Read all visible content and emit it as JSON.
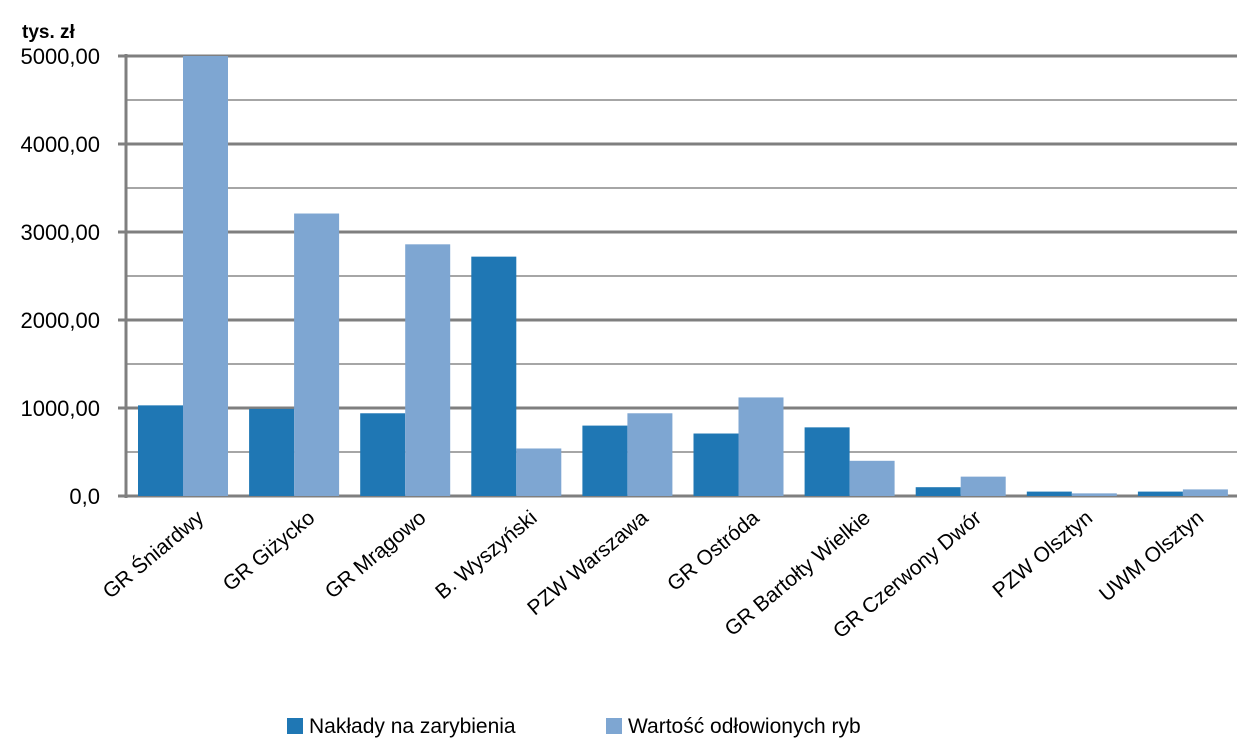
{
  "chart_data": {
    "type": "bar",
    "unit_label": "tys. zł",
    "categories": [
      "GR Śniardwy",
      "GR Giżycko",
      "GR Mrągowo",
      "B. Wyszyński",
      "PZW Warszawa",
      "GR Ostróda",
      "GR Bartołty Wielkie",
      "GR Czerwony Dwór",
      "PZW Olsztyn",
      "UWM Olsztyn"
    ],
    "series": [
      {
        "name": "Nakłady na zarybienia",
        "color": "#1f77b4",
        "values": [
          1030,
          990,
          940,
          2720,
          800,
          710,
          780,
          100,
          50,
          50
        ]
      },
      {
        "name": "Wartość odłowionych ryb",
        "color": "#7ea6d2",
        "values": [
          5000,
          3210,
          2860,
          540,
          940,
          1120,
          400,
          220,
          30,
          75
        ]
      }
    ],
    "ylim": [
      0,
      5000
    ],
    "yticks": [
      0,
      1000,
      2000,
      3000,
      4000,
      5000
    ],
    "ytick_labels": [
      "0,0",
      "1000,00",
      "2000,00",
      "3000,00",
      "4000,00",
      "5000,00"
    ],
    "minor_gridlines": [
      500,
      1500,
      2500,
      3500,
      4500
    ],
    "grid": true,
    "legend_position": "bottom"
  }
}
